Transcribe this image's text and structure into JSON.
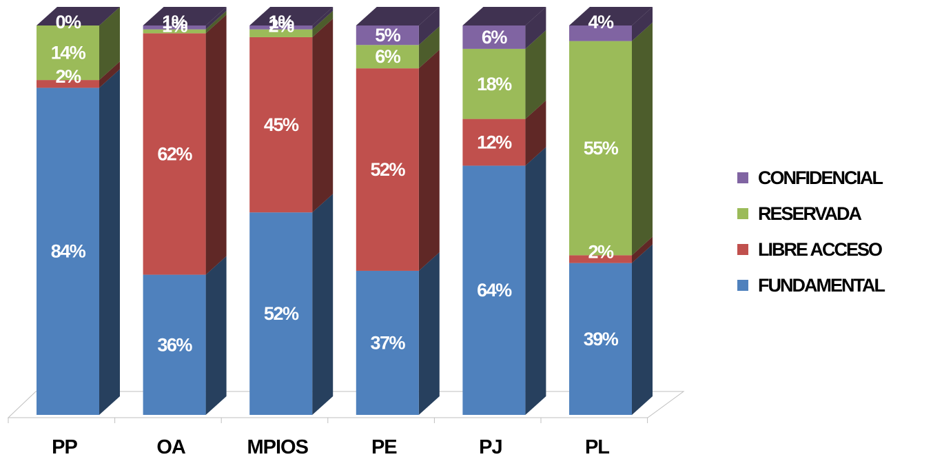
{
  "chart_data": {
    "type": "bar",
    "stacked": true,
    "categories": [
      "PP",
      "OA",
      "MPIOS",
      "PE",
      "PJ",
      "PL"
    ],
    "series": [
      {
        "name": "FUNDAMENTAL",
        "color": "#4F81BD",
        "side": "#27405E",
        "values": [
          84,
          36,
          52,
          37,
          64,
          39
        ],
        "labels": [
          "84%",
          "36%",
          "52%",
          "37%",
          "64%",
          "39%"
        ]
      },
      {
        "name": "LIBRE ACCESO",
        "color": "#C0504D",
        "side": "#602826",
        "values": [
          2,
          62,
          45,
          52,
          12,
          2
        ],
        "labels": [
          "2%",
          "62%",
          "45%",
          "52%",
          "12%",
          "2%"
        ]
      },
      {
        "name": "RESERVADA",
        "color": "#9BBB59",
        "side": "#4D5D2C",
        "values": [
          14,
          1,
          2,
          6,
          18,
          55
        ],
        "labels": [
          "14%",
          "1%",
          "2%",
          "6%",
          "18%",
          "55%"
        ]
      },
      {
        "name": "CONFIDENCIAL",
        "color": "#8064A2",
        "side": "#403251",
        "values": [
          0,
          1,
          1,
          5,
          6,
          4
        ],
        "labels": [
          "0%",
          "1%",
          "1%",
          "5%",
          "6%",
          "4%"
        ]
      }
    ],
    "ylim": [
      0,
      100
    ],
    "legend_position": "right",
    "legend_order": [
      "CONFIDENCIAL",
      "RESERVADA",
      "LIBRE ACCESO",
      "FUNDAMENTAL"
    ],
    "grid": false
  }
}
